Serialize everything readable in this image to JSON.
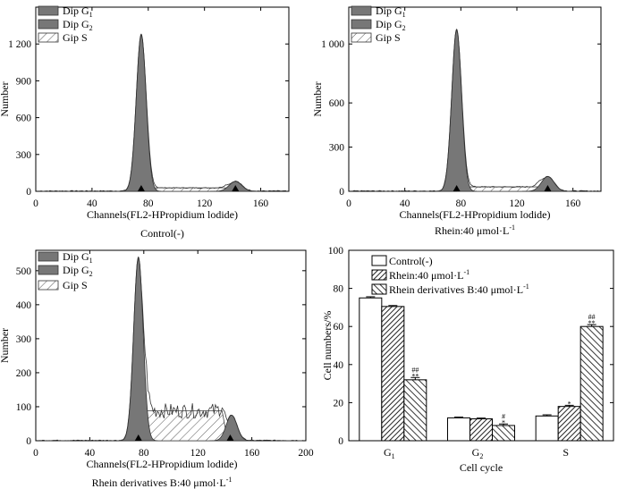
{
  "chart_data": [
    {
      "type": "histogram",
      "panel": "top-left",
      "caption": "Control(-)",
      "xlabel": "Channels(FL2-HPropidium lodide)",
      "ylabel": "Number",
      "xlim": [
        0,
        180
      ],
      "ylim": [
        0,
        1500
      ],
      "xticks": [
        "0",
        "40",
        "80",
        "120",
        "160"
      ],
      "yticks": [
        "0",
        "300",
        "600",
        "900",
        "1 200"
      ],
      "legend": [
        {
          "name": "Dip G",
          "sub": "1",
          "style": "solid-gray"
        },
        {
          "name": "Dip G",
          "sub": "2",
          "style": "solid-gray"
        },
        {
          "name": "Gip S",
          "style": "hatched"
        }
      ],
      "legend_position": "top-left",
      "markers_x": [
        75,
        142
      ],
      "peaks": [
        {
          "name": "G1",
          "center": 75,
          "height": 1280,
          "width": 3.5
        },
        {
          "name": "G2",
          "center": 142,
          "height": 80,
          "width": 4.5
        }
      ],
      "s_phase": {
        "from": 78,
        "to": 137,
        "level": 28
      }
    },
    {
      "type": "histogram",
      "panel": "top-right",
      "caption": "Rhein:40 μmol·L⁻¹",
      "xlabel": "Channels(FL2-HPropidium lodide)",
      "ylabel": "Number",
      "xlim": [
        0,
        180
      ],
      "ylim": [
        0,
        1250
      ],
      "xticks": [
        "0",
        "40",
        "80",
        "120",
        "160"
      ],
      "yticks": [
        "0",
        "300",
        "600",
        "1 000"
      ],
      "ytick_values": [
        0,
        300,
        600,
        1000
      ],
      "legend": [
        {
          "name": "Dip G",
          "sub": "1",
          "style": "solid-gray"
        },
        {
          "name": "Dip G",
          "sub": "2",
          "style": "solid-gray"
        },
        {
          "name": "Gip S",
          "style": "hatched"
        }
      ],
      "legend_position": "top-left",
      "markers_x": [
        77,
        142
      ],
      "peaks": [
        {
          "name": "G1",
          "center": 77,
          "height": 1100,
          "width": 3.5
        },
        {
          "name": "G2",
          "center": 142,
          "height": 100,
          "width": 4.5
        }
      ],
      "s_phase": {
        "from": 80,
        "to": 138,
        "level": 30
      }
    },
    {
      "type": "histogram",
      "panel": "bottom-left",
      "caption": "Rhein derivatives B:40 μmol·L⁻¹",
      "xlabel": "Channels(FL2-HPropidium lodide)",
      "ylabel": "Number",
      "xlim": [
        0,
        200
      ],
      "ylim": [
        0,
        560
      ],
      "xticks": [
        "0",
        "40",
        "80",
        "120",
        "160",
        "200"
      ],
      "yticks": [
        "0",
        "100",
        "200",
        "300",
        "400",
        "500"
      ],
      "legend": [
        {
          "name": "Dip G",
          "sub": "1",
          "style": "solid-gray"
        },
        {
          "name": "Dip G",
          "sub": "2",
          "style": "solid-gray"
        },
        {
          "name": "Gip S",
          "style": "hatched"
        }
      ],
      "legend_position": "top-left",
      "markers_x": [
        76,
        144
      ],
      "peaks": [
        {
          "name": "G1",
          "center": 76,
          "height": 540,
          "width": 3.5
        },
        {
          "name": "G2",
          "center": 145,
          "height": 75,
          "width": 4
        }
      ],
      "s_phase": {
        "from": 80,
        "to": 140,
        "level": 88
      }
    },
    {
      "type": "bar",
      "panel": "bottom-right",
      "title": "",
      "xlabel": "Cell cycle",
      "ylabel": "Cell numbers/%",
      "ylim": [
        0,
        100
      ],
      "yticks": [
        "0",
        "20",
        "40",
        "60",
        "80",
        "100"
      ],
      "categories": [
        {
          "name": "G",
          "sub": "1"
        },
        {
          "name": "G",
          "sub": "2"
        },
        {
          "name": "S"
        }
      ],
      "series": [
        {
          "name": "Control(-)",
          "style": "open",
          "values": [
            75,
            12,
            13
          ],
          "errors": [
            0.6,
            0.4,
            0.6
          ]
        },
        {
          "name": "Rhein:40 μmol·L⁻¹",
          "style": "hatch-dense",
          "values": [
            70.5,
            11.5,
            18
          ],
          "errors": [
            0.5,
            0.4,
            0.6
          ]
        },
        {
          "name": "Rhein derivatives B:40 μmol·L⁻¹",
          "style": "hatch-sparse",
          "values": [
            32,
            8,
            60
          ],
          "errors": [
            1.2,
            0.8,
            1.0
          ]
        }
      ],
      "annotations": [
        {
          "category": 0,
          "series": 2,
          "lines": [
            "##",
            "**"
          ]
        },
        {
          "category": 1,
          "series": 2,
          "lines": [
            "#",
            "*"
          ]
        },
        {
          "category": 2,
          "series": 1,
          "lines": [
            "*"
          ]
        },
        {
          "category": 2,
          "series": 2,
          "lines": [
            "##",
            "**"
          ]
        }
      ],
      "legend_position": "top-left"
    }
  ]
}
